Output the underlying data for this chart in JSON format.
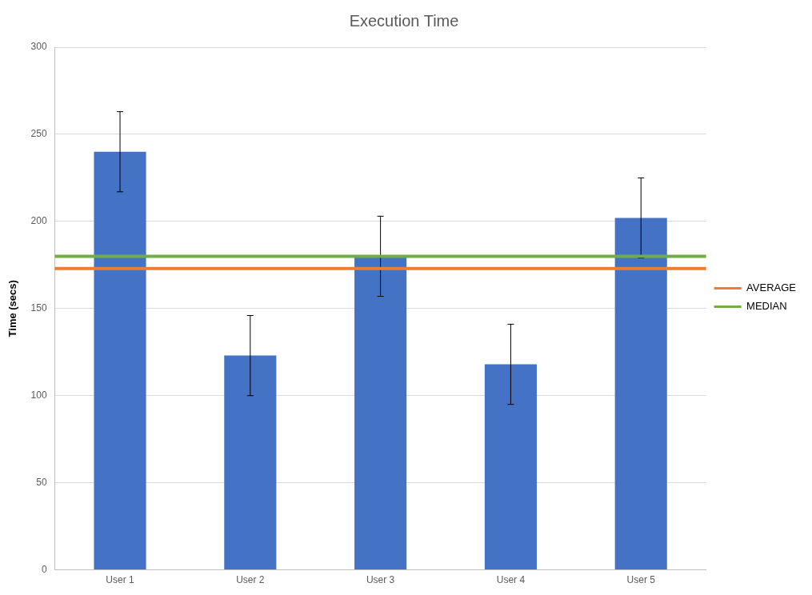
{
  "chart_data": {
    "type": "bar",
    "title": "Execution Time",
    "ylabel": "Time (secs)",
    "categories": [
      "User 1",
      "User 2",
      "User 3",
      "User 4",
      "User 5"
    ],
    "series": [
      {
        "color": "#4472c4",
        "values": [
          240,
          123,
          180,
          118,
          202
        ],
        "errors": [
          23,
          23,
          23,
          23,
          23
        ]
      }
    ],
    "ylim": [
      0,
      300
    ],
    "yticks": [
      0,
      50,
      100,
      150,
      200,
      250,
      300
    ],
    "grid": "y",
    "legend": "right",
    "ref_lines": [
      {
        "axis": "y",
        "value": 173,
        "label": "AVERAGE",
        "color": "#ed7d31"
      },
      {
        "axis": "y",
        "value": 180,
        "label": "MEDIAN",
        "color": "#70ad47"
      }
    ]
  }
}
